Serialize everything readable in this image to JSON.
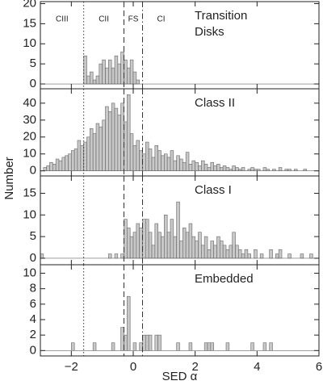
{
  "chart_data": [
    {
      "type": "histogram",
      "title": "Transition Disks",
      "color": "#c8c8c8",
      "region_labels": [
        "CIII",
        "CII",
        "FS",
        "CI"
      ],
      "vlines": [
        {
          "x": -1.6,
          "style": "dotted"
        },
        {
          "x": -0.3,
          "style": "dashed"
        },
        {
          "x": 0.3,
          "style": "dashdot"
        }
      ],
      "bins": [
        -3,
        -2.9,
        -2.8,
        -2.7,
        -2.6,
        -2.5,
        -2.4,
        -2.3,
        -2.2,
        -2.1,
        -2,
        -1.9,
        -1.8,
        -1.7,
        -1.6,
        -1.5,
        -1.4,
        -1.3,
        -1.2,
        -1.1,
        -1,
        -0.9,
        -0.8,
        -0.7,
        -0.6,
        -0.5,
        -0.4,
        -0.3,
        -0.2,
        -0.1,
        0,
        0.1,
        0.2,
        0.3,
        0.4,
        0.5,
        0.6,
        0.7,
        0.8,
        0.9,
        1,
        1.1,
        1.2,
        1.3,
        1.4,
        1.5,
        1.6,
        1.7,
        1.8,
        1.9,
        2,
        2.1,
        2.2,
        2.3,
        2.4,
        2.5,
        2.6,
        2.7,
        2.8,
        2.9,
        3,
        3.1,
        3.2,
        3.3,
        3.4,
        3.5,
        3.6,
        3.7,
        3.8,
        3.9,
        4,
        4.1,
        4.2,
        4.3,
        4.4,
        4.5,
        4.6,
        4.7,
        4.8,
        4.9,
        5,
        5.1,
        5.2,
        5.3,
        5.4,
        5.5,
        5.6,
        5.7,
        5.8,
        5.9,
        6
      ],
      "values": [
        0,
        0,
        0,
        0,
        0,
        0,
        0,
        0,
        0,
        0,
        0,
        0,
        0,
        0,
        7,
        2,
        3,
        1,
        2,
        5,
        6,
        4,
        6,
        4,
        7,
        5,
        8,
        6,
        4,
        6,
        3,
        1,
        0,
        0,
        0,
        0,
        0,
        0,
        0,
        0,
        0,
        0,
        0,
        0,
        0,
        0,
        0,
        0,
        0,
        0,
        0,
        0,
        0,
        0,
        0,
        0,
        0,
        0,
        0,
        0,
        0,
        0,
        0,
        0,
        0,
        0,
        0,
        0,
        0,
        0,
        0,
        0,
        0,
        0,
        0,
        0,
        0,
        0,
        0,
        0,
        0,
        0,
        0,
        0,
        0,
        0,
        0,
        0,
        0,
        0
      ],
      "xlim": [
        -3,
        6
      ],
      "xticks": [
        -2,
        0,
        2,
        4,
        6
      ],
      "ylim": [
        -1.2,
        20.5
      ],
      "yticks": [
        0,
        5,
        10,
        15,
        20
      ]
    },
    {
      "type": "histogram",
      "title": "Class II",
      "color": "#c8c8c8",
      "ylabel": "Number",
      "vlines": [
        {
          "x": -1.6,
          "style": "dotted"
        },
        {
          "x": -0.3,
          "style": "dashed"
        },
        {
          "x": 0.3,
          "style": "dashdot"
        }
      ],
      "bins": [
        -3,
        -2.9,
        -2.8,
        -2.7,
        -2.6,
        -2.5,
        -2.4,
        -2.3,
        -2.2,
        -2.1,
        -2,
        -1.9,
        -1.8,
        -1.7,
        -1.6,
        -1.5,
        -1.4,
        -1.3,
        -1.2,
        -1.1,
        -1,
        -0.9,
        -0.8,
        -0.7,
        -0.6,
        -0.5,
        -0.4,
        -0.3,
        -0.2,
        -0.1,
        0,
        0.1,
        0.2,
        0.3,
        0.4,
        0.5,
        0.6,
        0.7,
        0.8,
        0.9,
        1,
        1.1,
        1.2,
        1.3,
        1.4,
        1.5,
        1.6,
        1.7,
        1.8,
        1.9,
        2,
        2.1,
        2.2,
        2.3,
        2.4,
        2.5,
        2.6,
        2.7,
        2.8,
        2.9,
        3,
        3.1,
        3.2,
        3.3,
        3.4,
        3.5,
        3.6,
        3.7,
        3.8,
        3.9,
        4,
        4.1,
        4.2,
        4.3,
        4.4,
        4.5,
        4.6,
        4.7,
        4.8,
        4.9,
        5,
        5.1,
        5.2,
        5.3,
        5.4,
        5.5,
        5.6,
        5.7,
        5.8,
        5.9,
        6
      ],
      "values": [
        0,
        2,
        3,
        5,
        4,
        7,
        6,
        8,
        9,
        10,
        12,
        13,
        18,
        15,
        17,
        20,
        25,
        22,
        28,
        26,
        30,
        38,
        35,
        40,
        37,
        33,
        40,
        29,
        45,
        22,
        15,
        18,
        12,
        10,
        17,
        13,
        8,
        15,
        12,
        9,
        10,
        8,
        12,
        6,
        9,
        7,
        5,
        11,
        4,
        6,
        5,
        3,
        6,
        4,
        2,
        5,
        3,
        4,
        2,
        3,
        2,
        1,
        3,
        2,
        1,
        2,
        0,
        1,
        2,
        1,
        1,
        0,
        2,
        1,
        0,
        1,
        0,
        2,
        0,
        1,
        1,
        0,
        1,
        0,
        0,
        1,
        0,
        0,
        0,
        0
      ],
      "xlim": [
        -3,
        6
      ],
      "xticks": [
        -2,
        0,
        2,
        4,
        6
      ],
      "ylim": [
        -3,
        48.5
      ],
      "yticks": [
        0,
        10,
        20,
        30,
        40
      ]
    },
    {
      "type": "histogram",
      "title": "Class I",
      "color": "#c8c8c8",
      "vlines": [
        {
          "x": -1.6,
          "style": "dotted"
        },
        {
          "x": -0.3,
          "style": "dashed"
        },
        {
          "x": 0.3,
          "style": "dashdot"
        }
      ],
      "bins": [
        -3,
        -2.9,
        -2.8,
        -2.7,
        -2.6,
        -2.5,
        -2.4,
        -2.3,
        -2.2,
        -2.1,
        -2,
        -1.9,
        -1.8,
        -1.7,
        -1.6,
        -1.5,
        -1.4,
        -1.3,
        -1.2,
        -1.1,
        -1,
        -0.9,
        -0.8,
        -0.7,
        -0.6,
        -0.5,
        -0.4,
        -0.3,
        -0.2,
        -0.1,
        0,
        0.1,
        0.2,
        0.3,
        0.4,
        0.5,
        0.6,
        0.7,
        0.8,
        0.9,
        1,
        1.1,
        1.2,
        1.3,
        1.4,
        1.5,
        1.6,
        1.7,
        1.8,
        1.9,
        2,
        2.1,
        2.2,
        2.3,
        2.4,
        2.5,
        2.6,
        2.7,
        2.8,
        2.9,
        3,
        3.1,
        3.2,
        3.3,
        3.4,
        3.5,
        3.6,
        3.7,
        3.8,
        3.9,
        4,
        4.1,
        4.2,
        4.3,
        4.4,
        4.5,
        4.6,
        4.7,
        4.8,
        4.9,
        5,
        5.1,
        5.2,
        5.3,
        5.4,
        5.5,
        5.6,
        5.7,
        5.8,
        5.9,
        6
      ],
      "values": [
        1,
        0,
        0,
        0,
        0,
        0,
        0,
        0,
        0,
        0,
        0,
        0,
        0,
        0,
        0,
        0,
        0,
        0,
        0,
        0,
        0,
        0,
        1,
        0,
        1,
        0,
        1,
        9,
        7,
        5,
        6,
        8,
        7,
        9,
        9,
        6,
        3,
        8,
        6,
        5,
        10,
        6,
        9,
        5,
        13,
        4,
        7,
        6,
        8,
        5,
        4,
        6,
        3,
        5,
        2,
        4,
        3,
        5,
        4,
        3,
        2,
        3,
        6,
        3,
        2,
        1,
        2,
        1,
        0,
        2,
        0,
        1,
        0,
        0,
        2,
        0,
        1,
        2,
        0,
        0,
        1,
        0,
        0,
        0,
        1,
        0,
        0,
        1,
        0,
        0
      ],
      "xlim": [
        -3,
        6
      ],
      "xticks": [
        -2,
        0,
        2,
        4,
        6
      ],
      "ylim": [
        -1.5,
        19
      ],
      "yticks": [
        0,
        5,
        10,
        15
      ]
    },
    {
      "type": "histogram",
      "title": "Embedded",
      "color": "#c8c8c8",
      "xlabel": "SED α",
      "vlines": [
        {
          "x": -1.6,
          "style": "dotted"
        },
        {
          "x": -0.3,
          "style": "dashed"
        },
        {
          "x": 0.3,
          "style": "dashdot"
        }
      ],
      "bins": [
        -3,
        -2.9,
        -2.8,
        -2.7,
        -2.6,
        -2.5,
        -2.4,
        -2.3,
        -2.2,
        -2.1,
        -2,
        -1.9,
        -1.8,
        -1.7,
        -1.6,
        -1.5,
        -1.4,
        -1.3,
        -1.2,
        -1.1,
        -1,
        -0.9,
        -0.8,
        -0.7,
        -0.6,
        -0.5,
        -0.4,
        -0.3,
        -0.2,
        -0.1,
        0,
        0.1,
        0.2,
        0.3,
        0.4,
        0.5,
        0.6,
        0.7,
        0.8,
        0.9,
        1,
        1.1,
        1.2,
        1.3,
        1.4,
        1.5,
        1.6,
        1.7,
        1.8,
        1.9,
        2,
        2.1,
        2.2,
        2.3,
        2.4,
        2.5,
        2.6,
        2.7,
        2.8,
        2.9,
        3,
        3.1,
        3.2,
        3.3,
        3.4,
        3.5,
        3.6,
        3.7,
        3.8,
        3.9,
        4,
        4.1,
        4.2,
        4.3,
        4.4,
        4.5,
        4.6,
        4.7,
        4.8,
        4.9,
        5,
        5.1,
        5.2,
        5.3,
        5.4,
        5.5,
        5.6,
        5.7,
        5.8,
        5.9,
        6
      ],
      "values": [
        0,
        0,
        0,
        0,
        0,
        0,
        0,
        0,
        0,
        0,
        1,
        0,
        0,
        0,
        0,
        0,
        0,
        1,
        0,
        0,
        0,
        0,
        0,
        1,
        0,
        0,
        3,
        2,
        7,
        0,
        1,
        0,
        1,
        2,
        2,
        2,
        0,
        2,
        2,
        0,
        0,
        0,
        0,
        0,
        1,
        0,
        0,
        0,
        1,
        0,
        0,
        0,
        0,
        1,
        1,
        1,
        0,
        0,
        0,
        0,
        1,
        0,
        0,
        0,
        0,
        0,
        0,
        0,
        1,
        0,
        0,
        0,
        1,
        0,
        1,
        0,
        0,
        0,
        0,
        0,
        0,
        0,
        0,
        0,
        0,
        0,
        0,
        0,
        0,
        0
      ],
      "xlim": [
        -3,
        6
      ],
      "xticks": [
        {
          "value": -2,
          "label": "−2"
        },
        0,
        2,
        4,
        6
      ],
      "ylim": [
        -0.7,
        11.1
      ],
      "yticks": [
        0,
        2,
        4,
        6,
        8,
        10
      ]
    }
  ]
}
